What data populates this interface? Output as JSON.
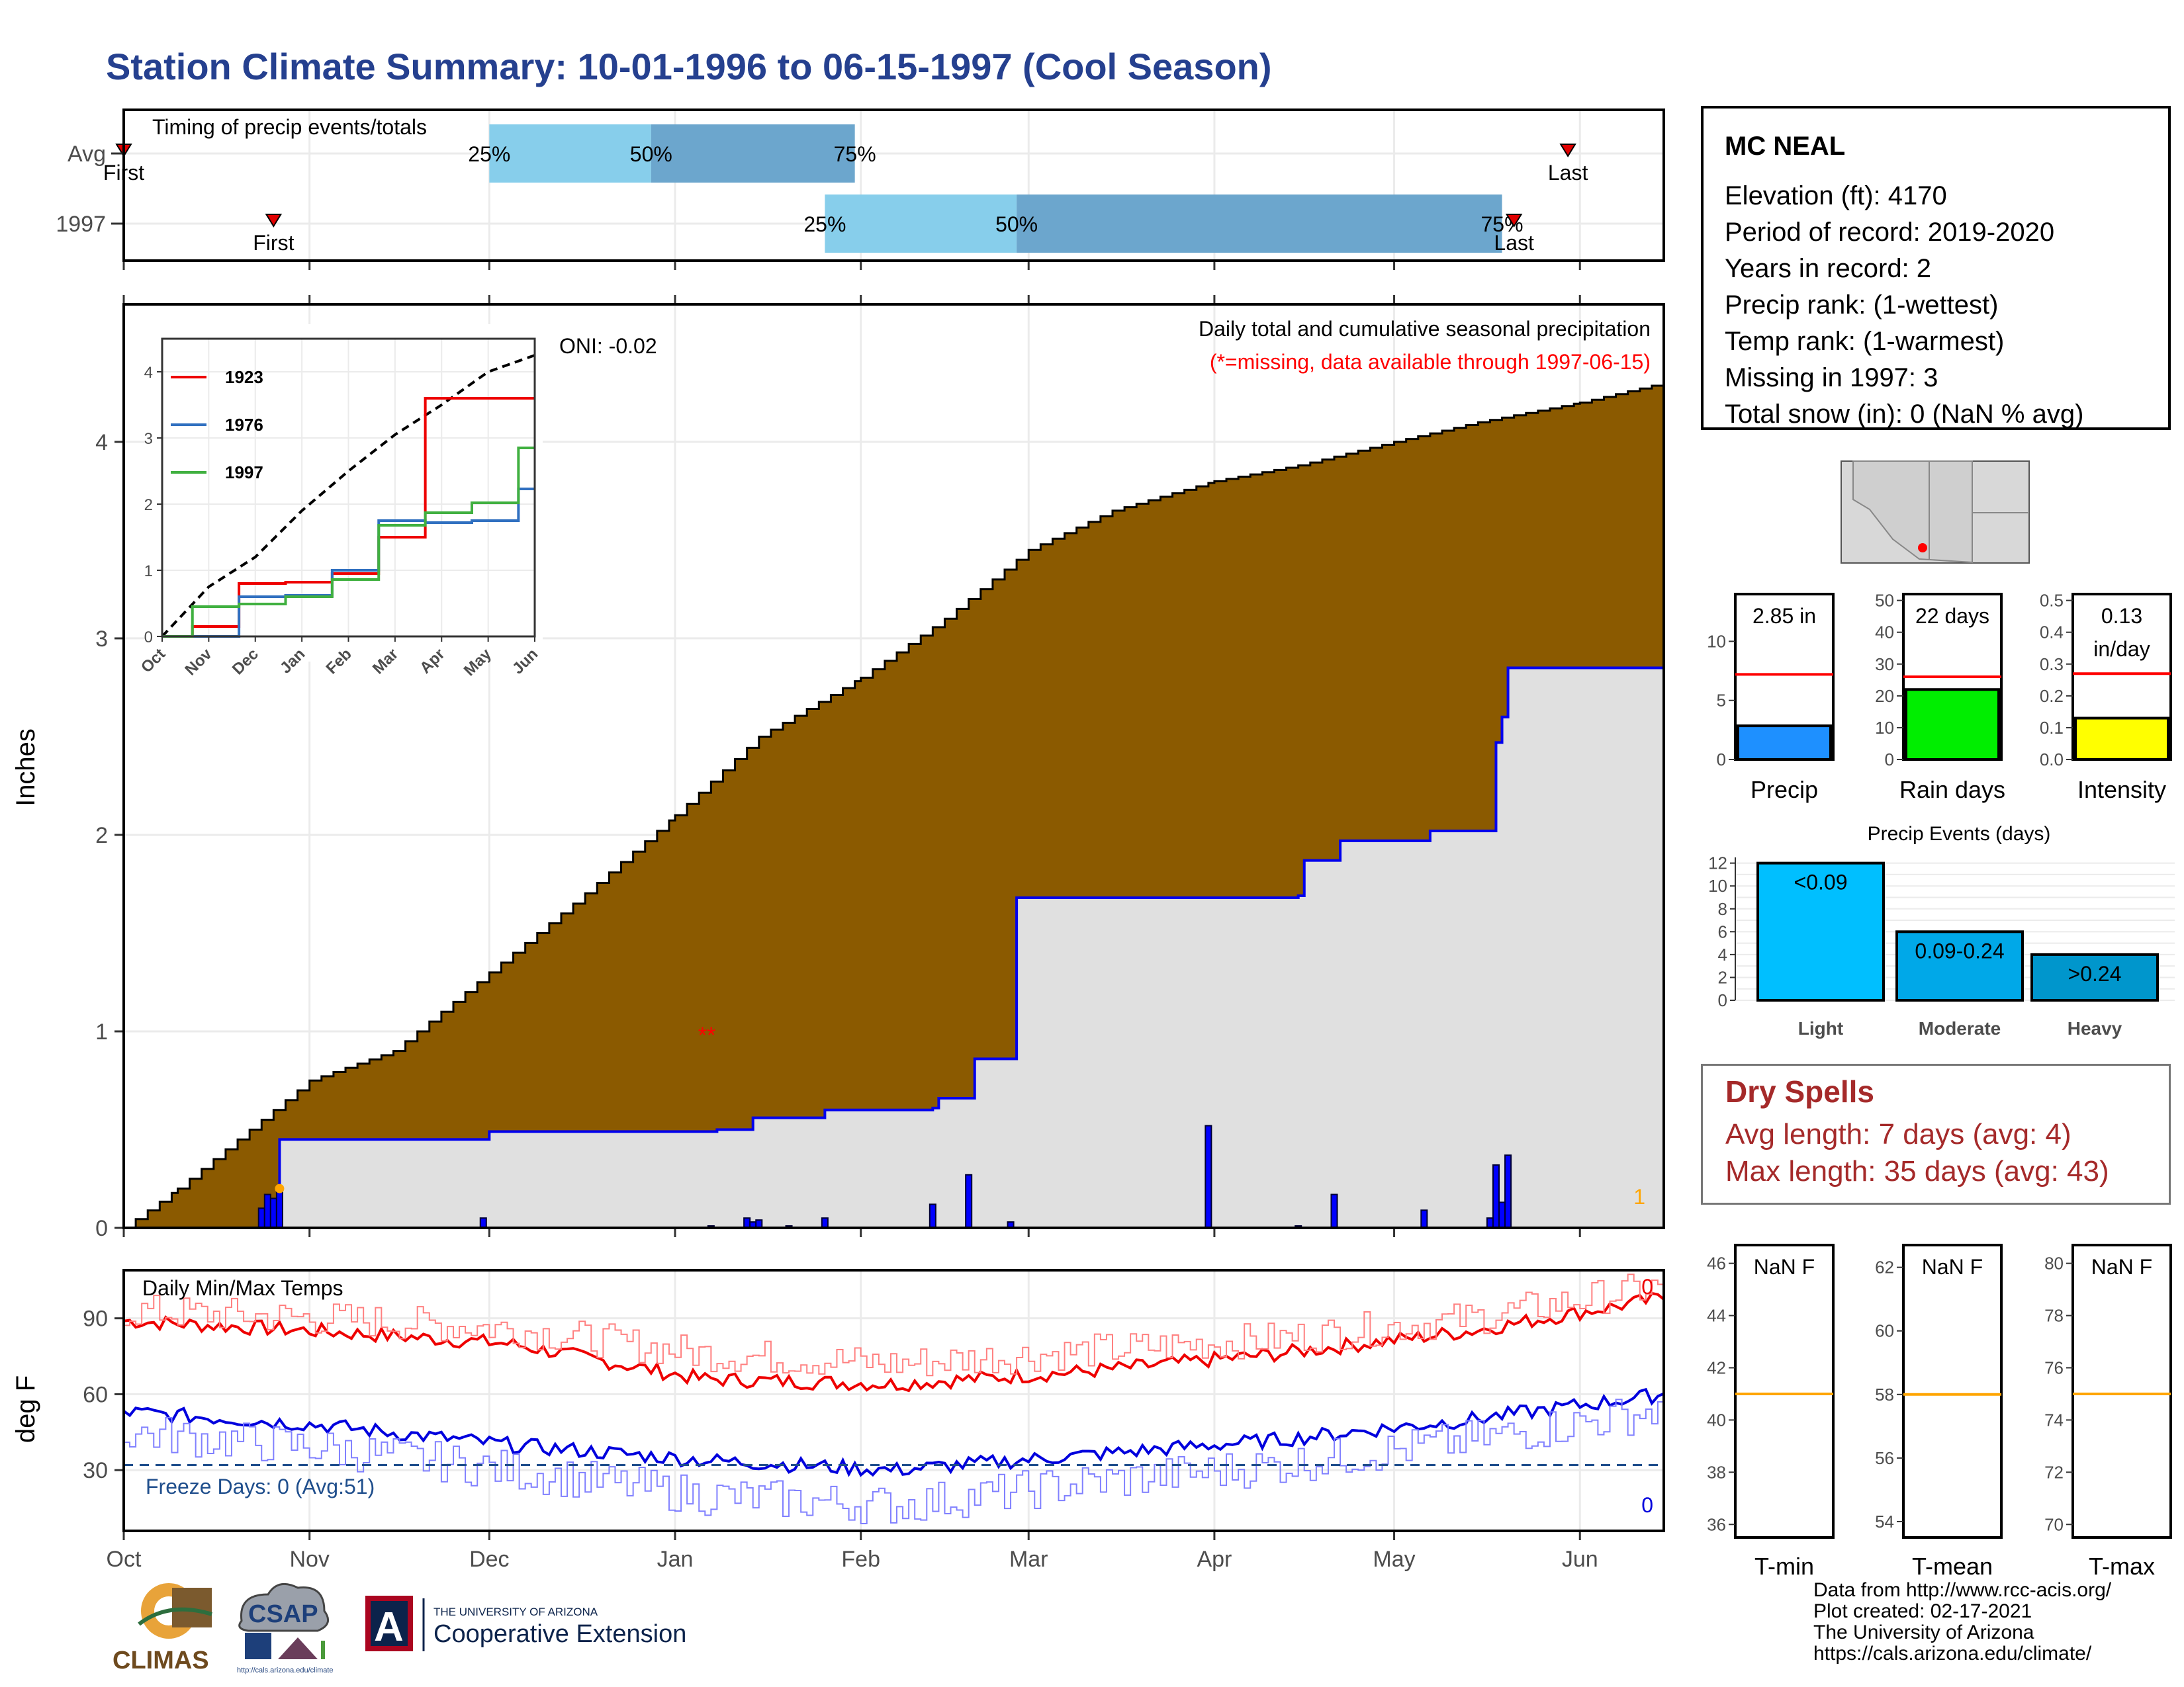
{
  "title": "Station Climate Summary: 10-01-1996 to 06-15-1997 (Cool Season)",
  "timing": {
    "title": "Timing of precip events/totals",
    "rows": [
      {
        "label": "Avg",
        "first_label": "First",
        "last_label": "Last",
        "first": "1996-10-01",
        "last": "1997-05-30",
        "p25": "1996-12-01",
        "p50": "1996-12-28",
        "p75": "1997-01-31"
      },
      {
        "label": "1997",
        "first_label": "First",
        "last_label": "Last",
        "first": "1996-10-26",
        "last": "1997-05-21",
        "p25": "1997-01-26",
        "p50": "1997-02-27",
        "p75": "1997-05-19"
      }
    ],
    "pct_labels": [
      "25%",
      "50%",
      "75%"
    ]
  },
  "months": [
    "Oct",
    "Nov",
    "Dec",
    "Jan",
    "Feb",
    "Mar",
    "Apr",
    "May",
    "Jun"
  ],
  "main": {
    "ylabel": "Inches",
    "yticks": [
      "0",
      "1",
      "2",
      "3",
      "4"
    ],
    "title": "Daily total and cumulative seasonal precipitation",
    "subtitle": "(*=missing, data available through 1997-06-15)",
    "oni": "ONI: -0.02",
    "corner_count": "1",
    "missing_marker": "**"
  },
  "inset": {
    "yticks": [
      "0",
      "1",
      "2",
      "3",
      "4"
    ],
    "months": [
      "Oct",
      "Nov",
      "Dec",
      "Jan",
      "Feb",
      "Mar",
      "Apr",
      "May",
      "Jun"
    ],
    "legend": [
      "1923",
      "1976",
      "1997"
    ]
  },
  "temps": {
    "title": "Daily Min/Max Temps",
    "ylabel": "deg F",
    "yticks": [
      "30",
      "60",
      "90"
    ],
    "freeze_label": "Freeze Days: 0 (Avg:51)",
    "max_count": "0",
    "min_count": "0"
  },
  "station": {
    "name": "MC NEAL",
    "lines": [
      "Elevation (ft): 4170",
      "Period of record: 2019-2020",
      "Years in record: 2",
      "Precip rank:  (1-wettest)",
      "Temp rank:  (1-warmest)",
      "Missing in 1997: 3",
      "Total snow (in): 0 (NaN % avg)"
    ]
  },
  "mini_bars": [
    {
      "label": "Precip",
      "value_text": "2.85 in",
      "value": 2.85,
      "avg": 7.2,
      "max": 14,
      "ticks": [
        "0",
        "5",
        "10"
      ],
      "color": "#1e90ff"
    },
    {
      "label": "Rain days",
      "value_text": "22 days",
      "value": 22,
      "avg": 26,
      "max": 52,
      "ticks": [
        "0",
        "10",
        "20",
        "30",
        "40",
        "50"
      ],
      "color": "#00ee00"
    },
    {
      "label": "Intensity",
      "value_text": "0.13",
      "value_text2": "in/day",
      "value": 0.13,
      "avg": 0.27,
      "max": 0.52,
      "ticks": [
        "0.0",
        "0.1",
        "0.2",
        "0.3",
        "0.4",
        "0.5"
      ],
      "color": "#ffff00"
    }
  ],
  "events": {
    "title": "Precip Events (days)",
    "yticks": [
      "0",
      "2",
      "4",
      "6",
      "8",
      "10",
      "12"
    ],
    "bars": [
      {
        "label": "Light",
        "range": "<0.09",
        "value": 12,
        "color": "#00bfff"
      },
      {
        "label": "Moderate",
        "range": "0.09-0.24",
        "value": 6,
        "color": "#00a8e8"
      },
      {
        "label": "Heavy",
        "range": ">0.24",
        "value": 4,
        "color": "#0096cc"
      }
    ]
  },
  "dry_spells": {
    "title": "Dry Spells",
    "avg": "Avg length: 7 days (avg: 4)",
    "max": "Max length: 35 days (avg: 43)"
  },
  "temp_boxes": [
    {
      "label": "T-min",
      "value_text": "NaN F",
      "ticks": [
        "36",
        "38",
        "40",
        "42",
        "44",
        "46"
      ],
      "avg": 41
    },
    {
      "label": "T-mean",
      "value_text": "NaN F",
      "ticks": [
        "54",
        "56",
        "58",
        "60",
        "62"
      ],
      "avg": 58
    },
    {
      "label": "T-max",
      "value_text": "NaN F",
      "ticks": [
        "70",
        "72",
        "74",
        "76",
        "78",
        "80"
      ],
      "avg": 75
    }
  ],
  "credits": [
    "Data from http://www.rcc-acis.org/",
    "Plot created: 02-17-2021",
    "The University of Arizona",
    "https://cals.arizona.edu/climate/"
  ],
  "logos": {
    "climas": "CLIMAS",
    "csap": "CSAP",
    "csap_url": "http://cals.arizona.edu/climate",
    "ua_small": "THE UNIVERSITY OF ARIZONA",
    "ua_big": "Cooperative Extension",
    "ua_letter": "A"
  },
  "chart_data": [
    {
      "type": "area",
      "title": "Daily total and cumulative seasonal precipitation",
      "ylabel": "Inches",
      "ylim": [
        0,
        4.7
      ],
      "x_range": [
        "1996-10-01",
        "1997-06-15"
      ],
      "series": [
        {
          "name": "",
          "x": [
            "1996-10-01",
            "1996-10-10",
            "1996-10-20",
            "1996-11-01",
            "1996-11-15",
            "1996-12-01",
            "1996-12-15",
            "1997-01-01",
            "1997-01-15",
            "1997-02-01",
            "1997-02-15",
            "1997-03-01",
            "1997-03-15",
            "1997-04-01",
            "1997-04-15",
            "1997-05-01",
            "1997-05-15",
            "1997-06-01",
            "1997-06-15"
          ],
          "y": [
            0.0,
            0.2,
            0.45,
            0.75,
            0.9,
            1.3,
            1.65,
            2.1,
            2.5,
            2.8,
            3.1,
            3.45,
            3.65,
            3.8,
            3.88,
            4.0,
            4.1,
            4.2,
            4.3
          ]
        },
        {
          "name": "",
          "x": [
            "1996-10-01",
            "1996-10-26",
            "1996-10-27",
            "1996-11-30",
            "1996-12-01",
            "1997-01-07",
            "1997-01-08",
            "1997-01-13",
            "1997-01-14",
            "1997-01-26",
            "1997-02-13",
            "1997-02-14",
            "1997-02-19",
            "1997-02-20",
            "1997-02-26",
            "1997-02-27",
            "1997-03-31",
            "1997-04-15",
            "1997-04-16",
            "1997-04-21",
            "1997-04-22",
            "1997-05-06",
            "1997-05-07",
            "1997-05-17",
            "1997-05-18",
            "1997-05-19",
            "1997-05-20",
            "1997-06-15"
          ],
          "y": [
            0.0,
            0.0,
            0.45,
            0.45,
            0.49,
            0.49,
            0.5,
            0.5,
            0.56,
            0.6,
            0.61,
            0.66,
            0.66,
            0.86,
            0.86,
            1.68,
            1.68,
            1.69,
            1.87,
            1.87,
            1.97,
            1.97,
            2.02,
            2.02,
            2.47,
            2.6,
            2.85,
            2.85
          ]
        }
      ],
      "daily_bars": {
        "x": [
          "1996-10-24",
          "1996-10-25",
          "1996-10-26",
          "1996-10-27",
          "1996-11-30",
          "1997-01-07",
          "1997-01-13",
          "1997-01-14",
          "1997-01-15",
          "1997-01-20",
          "1997-01-26",
          "1997-02-13",
          "1997-02-19",
          "1997-02-26",
          "1997-03-31",
          "1997-04-15",
          "1997-04-21",
          "1997-05-06",
          "1997-05-17",
          "1997-05-18",
          "1997-05-19",
          "1997-05-20"
        ],
        "y": [
          0.1,
          0.17,
          0.15,
          0.2,
          0.05,
          0.01,
          0.05,
          0.03,
          0.04,
          0.01,
          0.05,
          0.12,
          0.27,
          0.03,
          0.52,
          0.01,
          0.17,
          0.09,
          0.05,
          0.32,
          0.13,
          0.37
        ]
      }
    },
    {
      "type": "line",
      "x": [
        "Oct",
        "Nov",
        "Dec",
        "Jan",
        "Feb",
        "Mar",
        "Apr",
        "May",
        "Jun"
      ],
      "ylim": [
        0,
        4.5
      ],
      "series": [
        {
          "name": "",
          "values": [
            0.0,
            0.75,
            1.2,
            1.9,
            2.5,
            3.05,
            3.5,
            4.0,
            4.25
          ]
        },
        {
          "name": "1923",
          "values": [
            0.0,
            0.15,
            0.8,
            0.82,
            0.95,
            1.5,
            3.6,
            3.6,
            3.6
          ]
        },
        {
          "name": "1976",
          "values": [
            0.0,
            0.0,
            0.6,
            0.62,
            1.0,
            1.75,
            1.72,
            1.75,
            2.23
          ]
        },
        {
          "name": "1997",
          "values": [
            0.0,
            0.45,
            0.49,
            0.6,
            0.86,
            1.68,
            1.87,
            2.02,
            2.85
          ]
        }
      ]
    },
    {
      "type": "line",
      "title": "Daily Min/Max Temps",
      "ylabel": "deg F",
      "ylim": [
        6,
        109
      ],
      "x": [
        "Oct",
        "Nov",
        "Dec",
        "Jan",
        "Feb",
        "Mar",
        "Apr",
        "May",
        "Jun"
      ],
      "series": [
        {
          "name": "",
          "values": [
            89,
            85,
            80,
            66,
            64,
            69,
            76,
            85,
            98
          ]
        },
        {
          "name": "",
          "values": [
            93,
            90,
            86,
            76,
            72,
            77,
            82,
            90,
            103
          ]
        },
        {
          "name": "",
          "values": [
            53,
            48,
            40,
            34,
            30,
            36,
            42,
            50,
            60
          ]
        },
        {
          "name": "",
          "values": [
            45,
            39,
            30,
            20,
            16,
            25,
            32,
            42,
            54
          ]
        }
      ],
      "freeze_line": 32
    },
    {
      "type": "bar",
      "title": "Precip Events (days)",
      "categories": [
        "Light",
        "Moderate",
        "Heavy"
      ],
      "values": [
        12,
        6,
        4
      ],
      "ylim": [
        0,
        12.5
      ]
    }
  ]
}
